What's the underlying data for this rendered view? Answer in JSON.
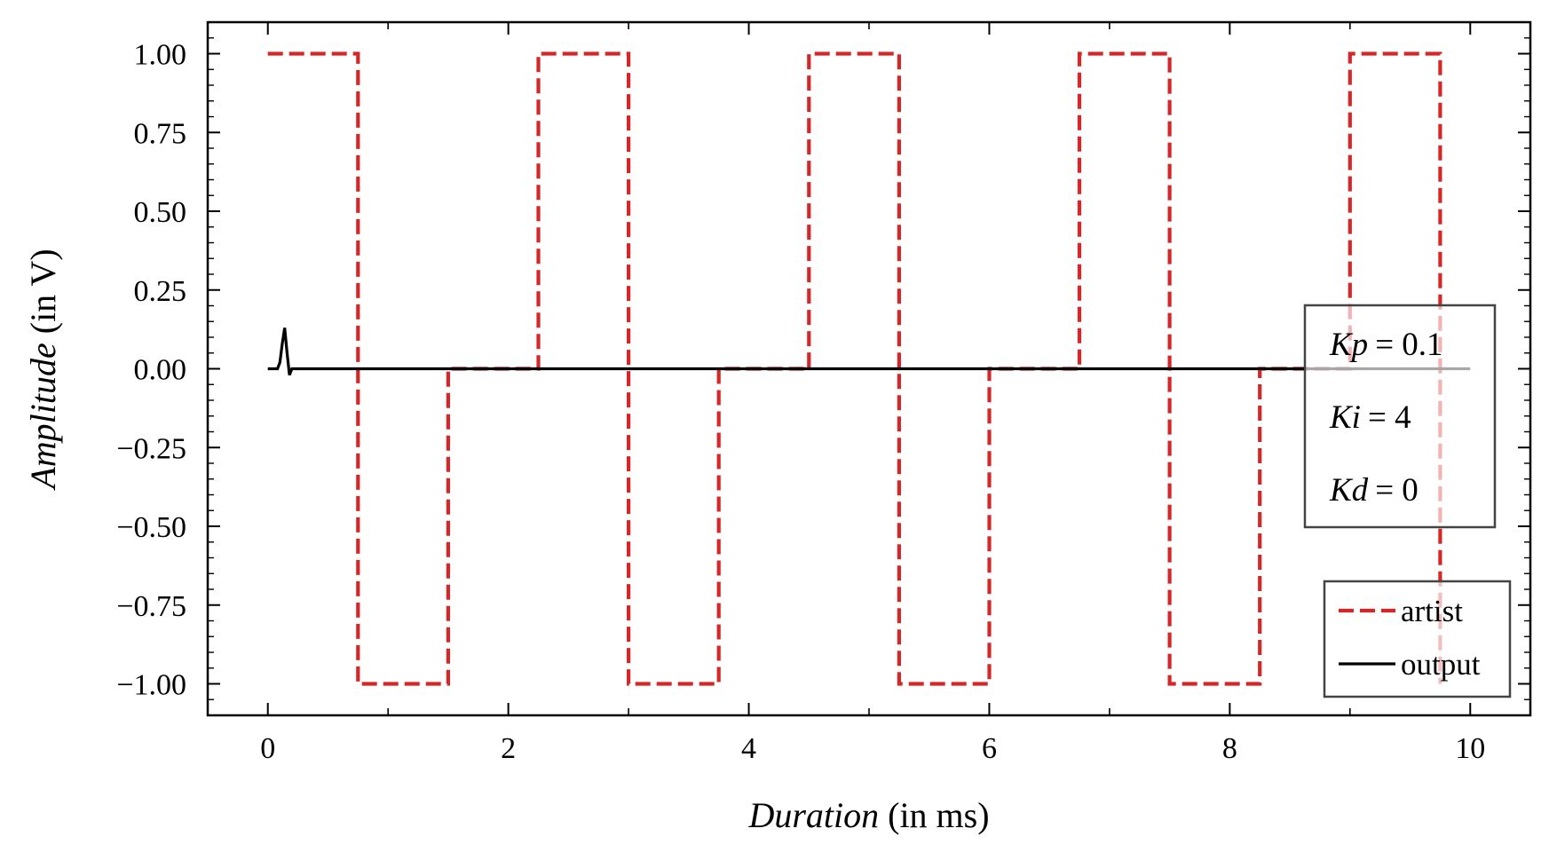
{
  "chart_data": {
    "type": "line",
    "xlabel": "Duration",
    "xlabel_unit": "(in ms)",
    "ylabel": "Amplitude",
    "ylabel_unit": "(in V)",
    "xlim": [
      -0.5,
      10.5
    ],
    "ylim": [
      -1.1,
      1.1
    ],
    "x_ticks": [
      0,
      2,
      4,
      6,
      8,
      10
    ],
    "x_tick_labels": [
      "0",
      "2",
      "4",
      "6",
      "8",
      "10"
    ],
    "x_minor_ticks": [
      1,
      3,
      5,
      7,
      9
    ],
    "y_ticks": [
      1.0,
      0.75,
      0.5,
      0.25,
      0.0,
      -0.25,
      -0.5,
      -0.75,
      -1.0
    ],
    "y_tick_labels": [
      "1.00",
      "0.75",
      "0.50",
      "0.25",
      "0.00",
      "−0.25",
      "−0.50",
      "−0.75",
      "−1.00"
    ],
    "grid": false,
    "legend_position": "bottom-right",
    "series": [
      {
        "name": "artist",
        "style": "dashed",
        "color": "#d62728",
        "x": [
          0,
          0.75,
          0.75,
          1.5,
          1.5,
          2.25,
          2.25,
          3.0,
          3.0,
          3.75,
          3.75,
          4.5,
          4.5,
          5.25,
          5.25,
          6.0,
          6.0,
          6.75,
          6.75,
          7.5,
          7.5,
          8.25,
          8.25,
          9.0,
          9.0,
          9.75,
          9.75
        ],
        "y": [
          1,
          1,
          -1,
          -1,
          0,
          0,
          1,
          1,
          -1,
          -1,
          0,
          0,
          1,
          1,
          -1,
          -1,
          0,
          0,
          1,
          1,
          -1,
          -1,
          0,
          0,
          1,
          1,
          -1
        ]
      },
      {
        "name": "output",
        "style": "solid",
        "color": "#000000",
        "x": [
          0,
          0.08,
          0.1,
          0.12,
          0.14,
          0.16,
          0.18,
          0.2,
          0.25,
          10
        ],
        "y": [
          0,
          0,
          0.02,
          0.08,
          0.13,
          0.05,
          -0.02,
          0,
          0,
          0
        ]
      }
    ],
    "annotation": {
      "lines": [
        {
          "var": "Kp",
          "value": "= 0.1"
        },
        {
          "var": "Ki",
          "value": "= 4"
        },
        {
          "var": "Kd",
          "value": "= 0"
        }
      ]
    }
  },
  "colors": {
    "artist": "#d62728",
    "output": "#000000",
    "frame": "#000000"
  }
}
